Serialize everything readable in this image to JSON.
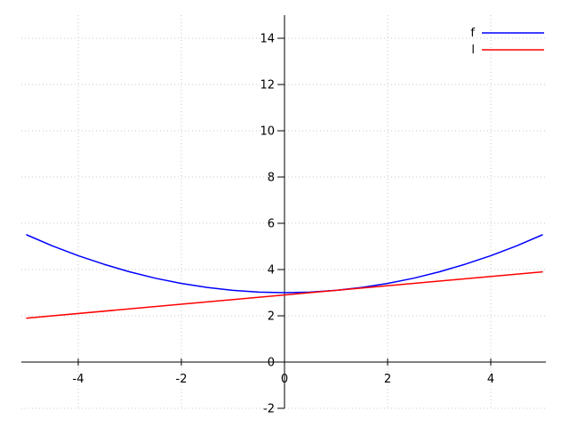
{
  "figure": {
    "background": "#ffffff"
  },
  "chart_data": {
    "type": "line",
    "title": "",
    "xlabel": "",
    "ylabel": "",
    "xlim": [
      -5,
      5
    ],
    "ylim": [
      -2,
      15
    ],
    "xticks": [
      -4,
      -2,
      0,
      2,
      4
    ],
    "yticks": [
      -2,
      0,
      2,
      4,
      6,
      8,
      10,
      12,
      14
    ],
    "grid": true,
    "grid_style": "dotted",
    "grid_color": "#c8c8c8",
    "axes_style": "zero-cross",
    "legend_position": "top-right",
    "series": [
      {
        "name": "f",
        "color": "#0000ff",
        "x": [
          -5,
          -4.5,
          -4,
          -3.5,
          -3,
          -2.5,
          -2,
          -1.5,
          -1,
          -0.5,
          0,
          0.5,
          1,
          1.5,
          2,
          2.5,
          3,
          3.5,
          4,
          4.5,
          5
        ],
        "y": [
          5.5,
          5.025,
          4.6,
          4.225,
          3.9,
          3.625,
          3.4,
          3.225,
          3.1,
          3.025,
          3.0,
          3.025,
          3.1,
          3.225,
          3.4,
          3.625,
          3.9,
          4.225,
          4.6,
          5.025,
          5.5
        ]
      },
      {
        "name": "l",
        "color": "#ff0000",
        "x": [
          -5,
          5
        ],
        "y": [
          1.9,
          3.9
        ]
      }
    ]
  }
}
